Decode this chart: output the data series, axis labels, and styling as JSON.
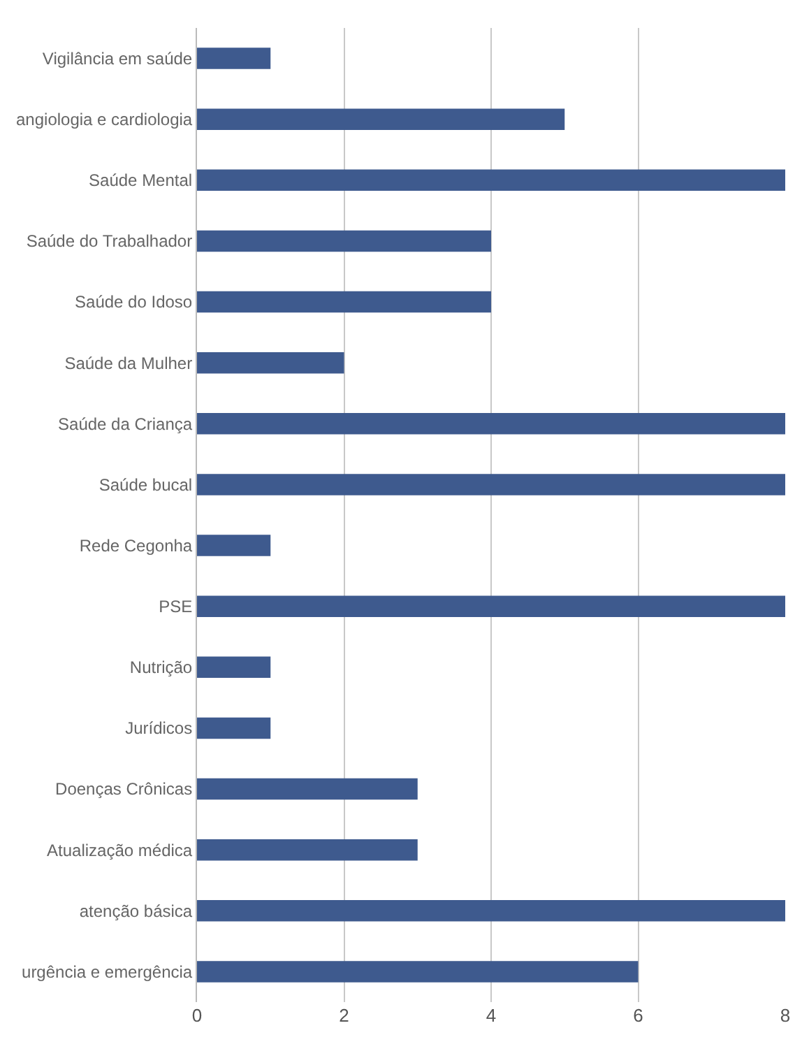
{
  "chart_data": {
    "type": "bar",
    "orientation": "horizontal",
    "categories": [
      "Vigilância em saúde",
      "angiologia e cardiologia",
      "Saúde Mental",
      "Saúde do Trabalhador",
      "Saúde do Idoso",
      "Saúde da Mulher",
      "Saúde da Criança",
      "Saúde bucal",
      "Rede Cegonha",
      "PSE",
      "Nutrição",
      "Jurídicos",
      "Doenças Crônicas",
      "Atualização médica",
      "atenção básica",
      "urgência e emergência"
    ],
    "values": [
      1,
      5,
      8,
      4,
      4,
      2,
      8,
      8,
      1,
      8,
      1,
      1,
      3,
      3,
      8,
      6
    ],
    "color": "#3e5a8e",
    "xlim": [
      0,
      8
    ],
    "xticks": [
      0,
      2,
      4,
      6,
      8
    ],
    "grid": "x"
  }
}
